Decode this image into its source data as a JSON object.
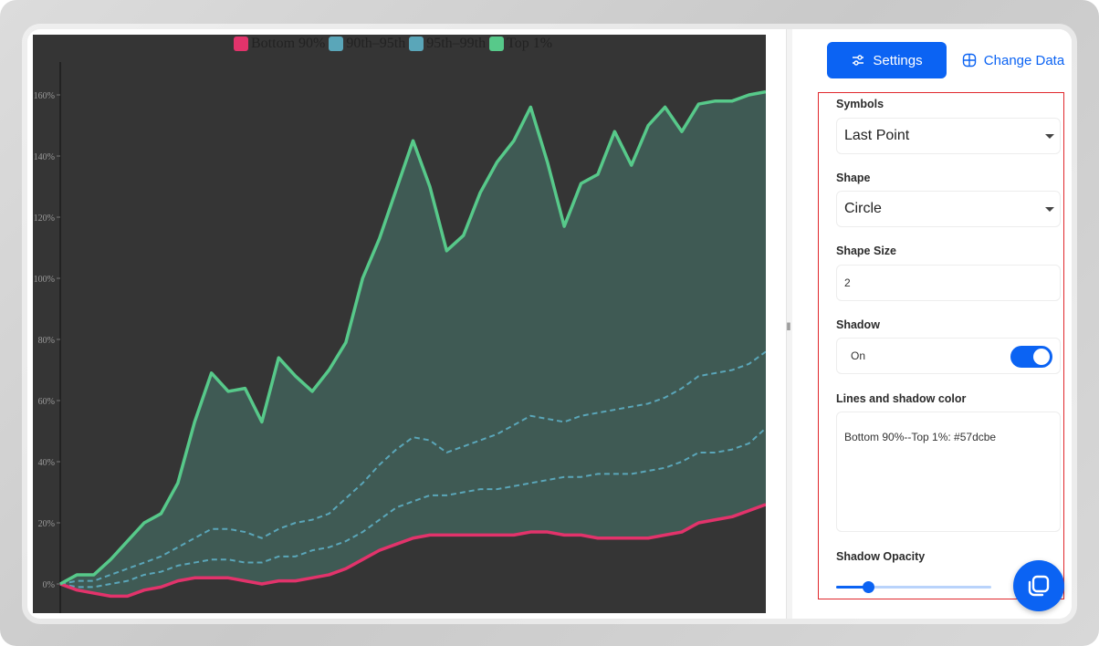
{
  "tabs": {
    "settings_label": "Settings",
    "change_data_label": "Change Data"
  },
  "settings": {
    "symbols": {
      "label": "Symbols",
      "value": "Last Point"
    },
    "shape": {
      "label": "Shape",
      "value": "Circle"
    },
    "shape_size": {
      "label": "Shape Size",
      "value": "2"
    },
    "shadow": {
      "label": "Shadow",
      "value": "On",
      "enabled": true
    },
    "lines_color": {
      "label": "Lines and shadow color",
      "value": "Bottom 90%--Top 1%: #57dcbe"
    },
    "shadow_opacity": {
      "label": "Shadow Opacity",
      "value": 0.2
    }
  },
  "colors": {
    "accent": "#0b63f3",
    "chart_bg": "#353535",
    "bottom": "#e2336b",
    "mid": "#5aa6b9",
    "top": "#57c98a",
    "fill": "#3f5a54"
  },
  "chart_data": {
    "type": "area",
    "title": "",
    "legend": [
      "Bottom 90%",
      "90th–95th",
      "95th–99th",
      "Top 1%"
    ],
    "ytick_labels": [
      "0%",
      "20%",
      "40%",
      "60%",
      "80%",
      "100%",
      "120%",
      "140%",
      "160%"
    ],
    "ylim": [
      -10,
      170
    ],
    "x": [
      0,
      1,
      2,
      3,
      4,
      5,
      6,
      7,
      8,
      9,
      10,
      11,
      12,
      13,
      14,
      15,
      16,
      17,
      18,
      19,
      20,
      21,
      22,
      23,
      24,
      25,
      26,
      27,
      28,
      29,
      30,
      31,
      32,
      33,
      34,
      35,
      36,
      37,
      38,
      39,
      40,
      41,
      42
    ],
    "series": [
      {
        "name": "Bottom 90%",
        "values": [
          0,
          -2,
          -3,
          -4,
          -4,
          -2,
          -1,
          1,
          2,
          2,
          2,
          1,
          0,
          1,
          1,
          2,
          3,
          5,
          8,
          11,
          13,
          15,
          16,
          16,
          16,
          16,
          16,
          16,
          17,
          17,
          16,
          16,
          15,
          15,
          15,
          15,
          16,
          17,
          20,
          21,
          22,
          24,
          26
        ]
      },
      {
        "name": "90th–95th",
        "values": [
          0,
          -1,
          -1,
          0,
          1,
          3,
          4,
          6,
          7,
          8,
          8,
          7,
          7,
          9,
          9,
          11,
          12,
          14,
          17,
          21,
          25,
          27,
          29,
          29,
          30,
          31,
          31,
          32,
          33,
          34,
          35,
          35,
          36,
          36,
          36,
          37,
          38,
          40,
          43,
          43,
          44,
          46,
          51
        ]
      },
      {
        "name": "95th–99th",
        "values": [
          0,
          1,
          1,
          3,
          5,
          7,
          9,
          12,
          15,
          18,
          18,
          17,
          15,
          18,
          20,
          21,
          23,
          28,
          33,
          39,
          44,
          48,
          47,
          43,
          45,
          47,
          49,
          52,
          55,
          54,
          53,
          55,
          56,
          57,
          58,
          59,
          61,
          64,
          68,
          69,
          70,
          72,
          76
        ]
      },
      {
        "name": "Top 1%",
        "values": [
          0,
          3,
          3,
          8,
          14,
          20,
          23,
          33,
          53,
          69,
          63,
          64,
          53,
          74,
          68,
          63,
          70,
          79,
          100,
          113,
          129,
          145,
          130,
          109,
          114,
          128,
          138,
          145,
          156,
          138,
          117,
          131,
          134,
          148,
          137,
          150,
          156,
          148,
          157,
          158,
          158,
          160,
          161
        ]
      }
    ]
  }
}
